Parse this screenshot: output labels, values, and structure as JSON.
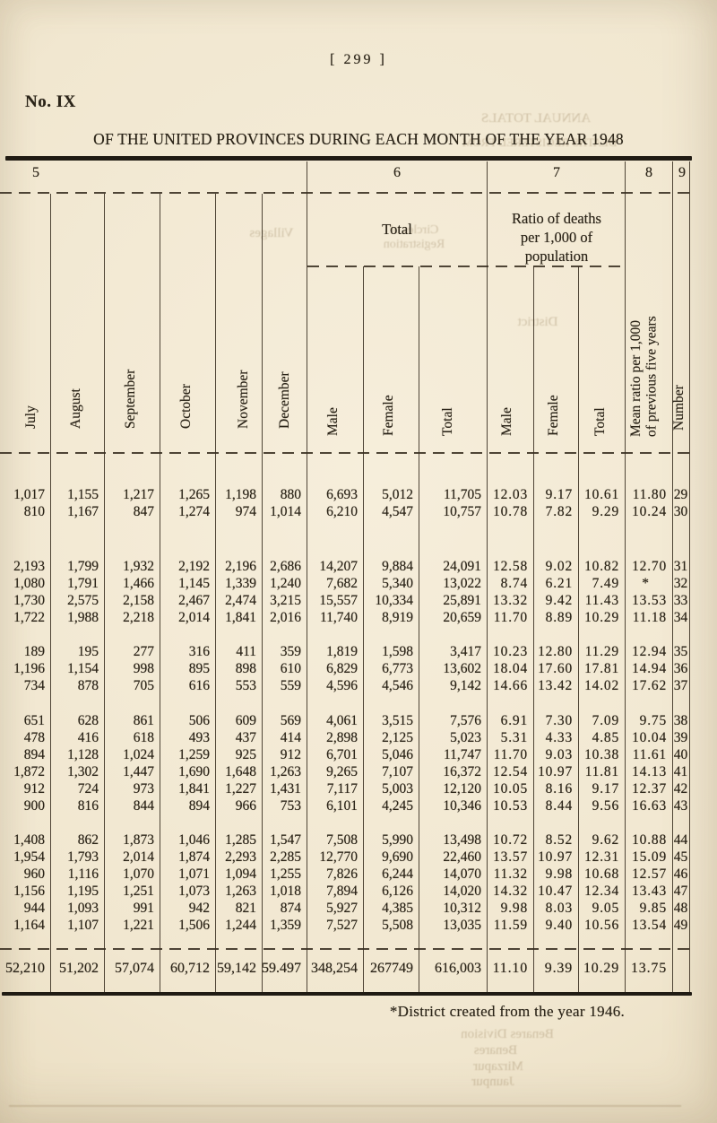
{
  "page": {
    "page_number": "[ 299 ]",
    "section_number": "No. IX",
    "title": "OF THE UNITED PROVINCES DURING EACH MONTH OF THE YEAR 1948",
    "footnote": "*District created from the year 1946."
  },
  "table": {
    "group_numbers": [
      "5",
      "6",
      "7",
      "8",
      "9"
    ],
    "spanner_total": "Total",
    "spanner_ratio_lines": [
      "Ratio of deaths",
      "per 1,000 of",
      "population"
    ],
    "columns": [
      {
        "lines": [
          "July"
        ]
      },
      {
        "lines": [
          "August"
        ]
      },
      {
        "lines": [
          "September"
        ]
      },
      {
        "lines": [
          "October"
        ]
      },
      {
        "lines": [
          "November"
        ]
      },
      {
        "lines": [
          "December"
        ]
      },
      {
        "lines": [
          "Male"
        ]
      },
      {
        "lines": [
          "Female"
        ]
      },
      {
        "lines": [
          "Total"
        ]
      },
      {
        "lines": [
          "Male"
        ]
      },
      {
        "lines": [
          "Female"
        ]
      },
      {
        "lines": [
          "Total"
        ]
      },
      {
        "lines": [
          "Mean ratio per 1,000",
          "of previous five years"
        ]
      },
      {
        "lines": [
          "Number"
        ]
      }
    ],
    "row_groups": [
      {
        "rows": [
          {
            "cells": [
              "1,017",
              "1,155",
              "1,217",
              "1,265",
              "1,198",
              "880",
              "6,693",
              "5,012",
              "11,705",
              "12.03",
              "9.17",
              "10.61",
              "11.80",
              "29"
            ]
          },
          {
            "cells": [
              "810",
              "1,167",
              "847",
              "1,274",
              "974",
              "1,014",
              "6,210",
              "4,547",
              "10,757",
              "10.78",
              "7.82",
              "9.29",
              "10.24",
              "30"
            ]
          }
        ]
      },
      {
        "rows": [
          {
            "cells": [
              "2,193",
              "1,799",
              "1,932",
              "2,192",
              "2,196",
              "2,686",
              "14,207",
              "9,884",
              "24,091",
              "12.58",
              "9.02",
              "10.82",
              "12.70",
              "31"
            ]
          },
          {
            "cells": [
              "1,080",
              "1,791",
              "1,466",
              "1,145",
              "1,339",
              "1,240",
              "7,682",
              "5,340",
              "13,022",
              "8.74",
              "6.21",
              "7.49",
              "*",
              "32"
            ]
          },
          {
            "cells": [
              "1,730",
              "2,575",
              "2,158",
              "2,467",
              "2,474",
              "3,215",
              "15,557",
              "10,334",
              "25,891",
              "13.32",
              "9.42",
              "11.43",
              "13.53",
              "33"
            ]
          },
          {
            "cells": [
              "1,722",
              "1,988",
              "2,218",
              "2,014",
              "1,841",
              "2,016",
              "11,740",
              "8,919",
              "20,659",
              "11.70",
              "8.89",
              "10.29",
              "11.18",
              "34"
            ]
          }
        ]
      },
      {
        "rows": [
          {
            "cells": [
              "189",
              "195",
              "277",
              "316",
              "411",
              "359",
              "1,819",
              "1,598",
              "3,417",
              "10.23",
              "12.80",
              "11.29",
              "12.94",
              "35"
            ]
          },
          {
            "cells": [
              "1,196",
              "1,154",
              "998",
              "895",
              "898",
              "610",
              "6,829",
              "6,773",
              "13,602",
              "18.04",
              "17.60",
              "17.81",
              "14.94",
              "36"
            ]
          },
          {
            "cells": [
              "734",
              "878",
              "705",
              "616",
              "553",
              "559",
              "4,596",
              "4,546",
              "9,142",
              "14.66",
              "13.42",
              "14.02",
              "17.62",
              "37"
            ]
          }
        ]
      },
      {
        "rows": [
          {
            "cells": [
              "651",
              "628",
              "861",
              "506",
              "609",
              "569",
              "4,061",
              "3,515",
              "7,576",
              "6.91",
              "7.30",
              "7.09",
              "9.75",
              "38"
            ]
          },
          {
            "cells": [
              "478",
              "416",
              "618",
              "493",
              "437",
              "414",
              "2,898",
              "2,125",
              "5,023",
              "5.31",
              "4.33",
              "4.85",
              "10.04",
              "39"
            ]
          },
          {
            "cells": [
              "894",
              "1,128",
              "1,024",
              "1,259",
              "925",
              "912",
              "6,701",
              "5,046",
              "11,747",
              "11.70",
              "9.03",
              "10.38",
              "11.61",
              "40"
            ]
          },
          {
            "cells": [
              "1,872",
              "1,302",
              "1,447",
              "1,690",
              "1,648",
              "1,263",
              "9,265",
              "7,107",
              "16,372",
              "12.54",
              "10.97",
              "11.81",
              "14.13",
              "41"
            ]
          },
          {
            "cells": [
              "912",
              "724",
              "973",
              "1,841",
              "1,227",
              "1,431",
              "7,117",
              "5,003",
              "12,120",
              "10.05",
              "8.16",
              "9.17",
              "12.37",
              "42"
            ]
          },
          {
            "cells": [
              "900",
              "816",
              "844",
              "894",
              "966",
              "753",
              "6,101",
              "4,245",
              "10,346",
              "10.53",
              "8.44",
              "9.56",
              "16.63",
              "43"
            ]
          }
        ]
      },
      {
        "rows": [
          {
            "cells": [
              "1,408",
              "862",
              "1,873",
              "1,046",
              "1,285",
              "1,547",
              "7,508",
              "5,990",
              "13,498",
              "10.72",
              "8.52",
              "9.62",
              "10.88",
              "44"
            ]
          },
          {
            "cells": [
              "1,954",
              "1,793",
              "2,014",
              "1,874",
              "2,293",
              "2,285",
              "12,770",
              "9,690",
              "22,460",
              "13.57",
              "10.97",
              "12.31",
              "15.09",
              "45"
            ]
          },
          {
            "cells": [
              "960",
              "1,116",
              "1,070",
              "1,071",
              "1,094",
              "1,255",
              "7,826",
              "6,244",
              "14,070",
              "11.32",
              "9.98",
              "10.68",
              "12.57",
              "46"
            ]
          },
          {
            "cells": [
              "1,156",
              "1,195",
              "1,251",
              "1,073",
              "1,263",
              "1,018",
              "7,894",
              "6,126",
              "14,020",
              "14.32",
              "10.47",
              "12.34",
              "13.43",
              "47"
            ]
          },
          {
            "cells": [
              "944",
              "1,093",
              "991",
              "942",
              "821",
              "874",
              "5,927",
              "4,385",
              "10,312",
              "9.98",
              "8.03",
              "9.05",
              "9.85",
              "48"
            ]
          },
          {
            "cells": [
              "1,164",
              "1,107",
              "1,221",
              "1,506",
              "1,244",
              "1,359",
              "7,527",
              "5,508",
              "13,035",
              "11.59",
              "9.40",
              "10.56",
              "13.54",
              "49"
            ]
          }
        ]
      }
    ],
    "totals": {
      "cells": [
        "52,210",
        "51,202",
        "57,074",
        "60,712",
        "59,142",
        "59.497",
        "348,254",
        "267749",
        "616,003",
        "11.10",
        "9.39",
        "10.29",
        "13.75",
        ""
      ]
    }
  },
  "bleed_through": [
    "ANNUAL TOTALS",
    "DEATHS REGISTERED FROM",
    "Villages",
    "Circles of",
    "Registration",
    "District",
    "Benares Division",
    "Benares",
    "Mirzapur",
    "Jaunpur"
  ]
}
